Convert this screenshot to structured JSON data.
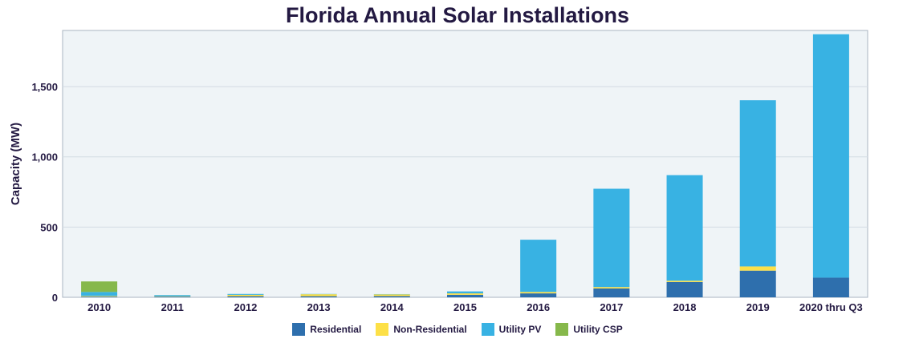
{
  "chart_data": {
    "type": "bar",
    "stacked": true,
    "title": "Florida Annual Solar Installations",
    "xlabel": "",
    "ylabel": "Capacity (MW)",
    "ylim": [
      0,
      1900
    ],
    "yticks": [
      0,
      500,
      1000,
      1500
    ],
    "ytick_labels": [
      "0",
      "500",
      "1,000",
      "1,500"
    ],
    "grid": true,
    "legend": "bottom",
    "categories": [
      "2010",
      "2011",
      "2012",
      "2013",
      "2014",
      "2015",
      "2016",
      "2017",
      "2018",
      "2019",
      "2020 thru Q3"
    ],
    "series": [
      {
        "name": "Residential",
        "color": "#2e6fad",
        "values": [
          5,
          5,
          8,
          8,
          9,
          18,
          28,
          63,
          109,
          190,
          140
        ]
      },
      {
        "name": "Non-Residential",
        "color": "#fde047",
        "values": [
          5,
          3,
          10,
          14,
          12,
          10,
          10,
          10,
          9,
          30,
          0
        ]
      },
      {
        "name": "Utility PV",
        "color": "#38b2e3",
        "values": [
          28,
          8,
          6,
          2,
          2,
          14,
          372,
          700,
          752,
          1183,
          1733
        ]
      },
      {
        "name": "Utility CSP",
        "color": "#86b84b",
        "values": [
          75,
          0,
          0,
          0,
          0,
          0,
          0,
          0,
          0,
          0,
          0
        ]
      }
    ]
  }
}
